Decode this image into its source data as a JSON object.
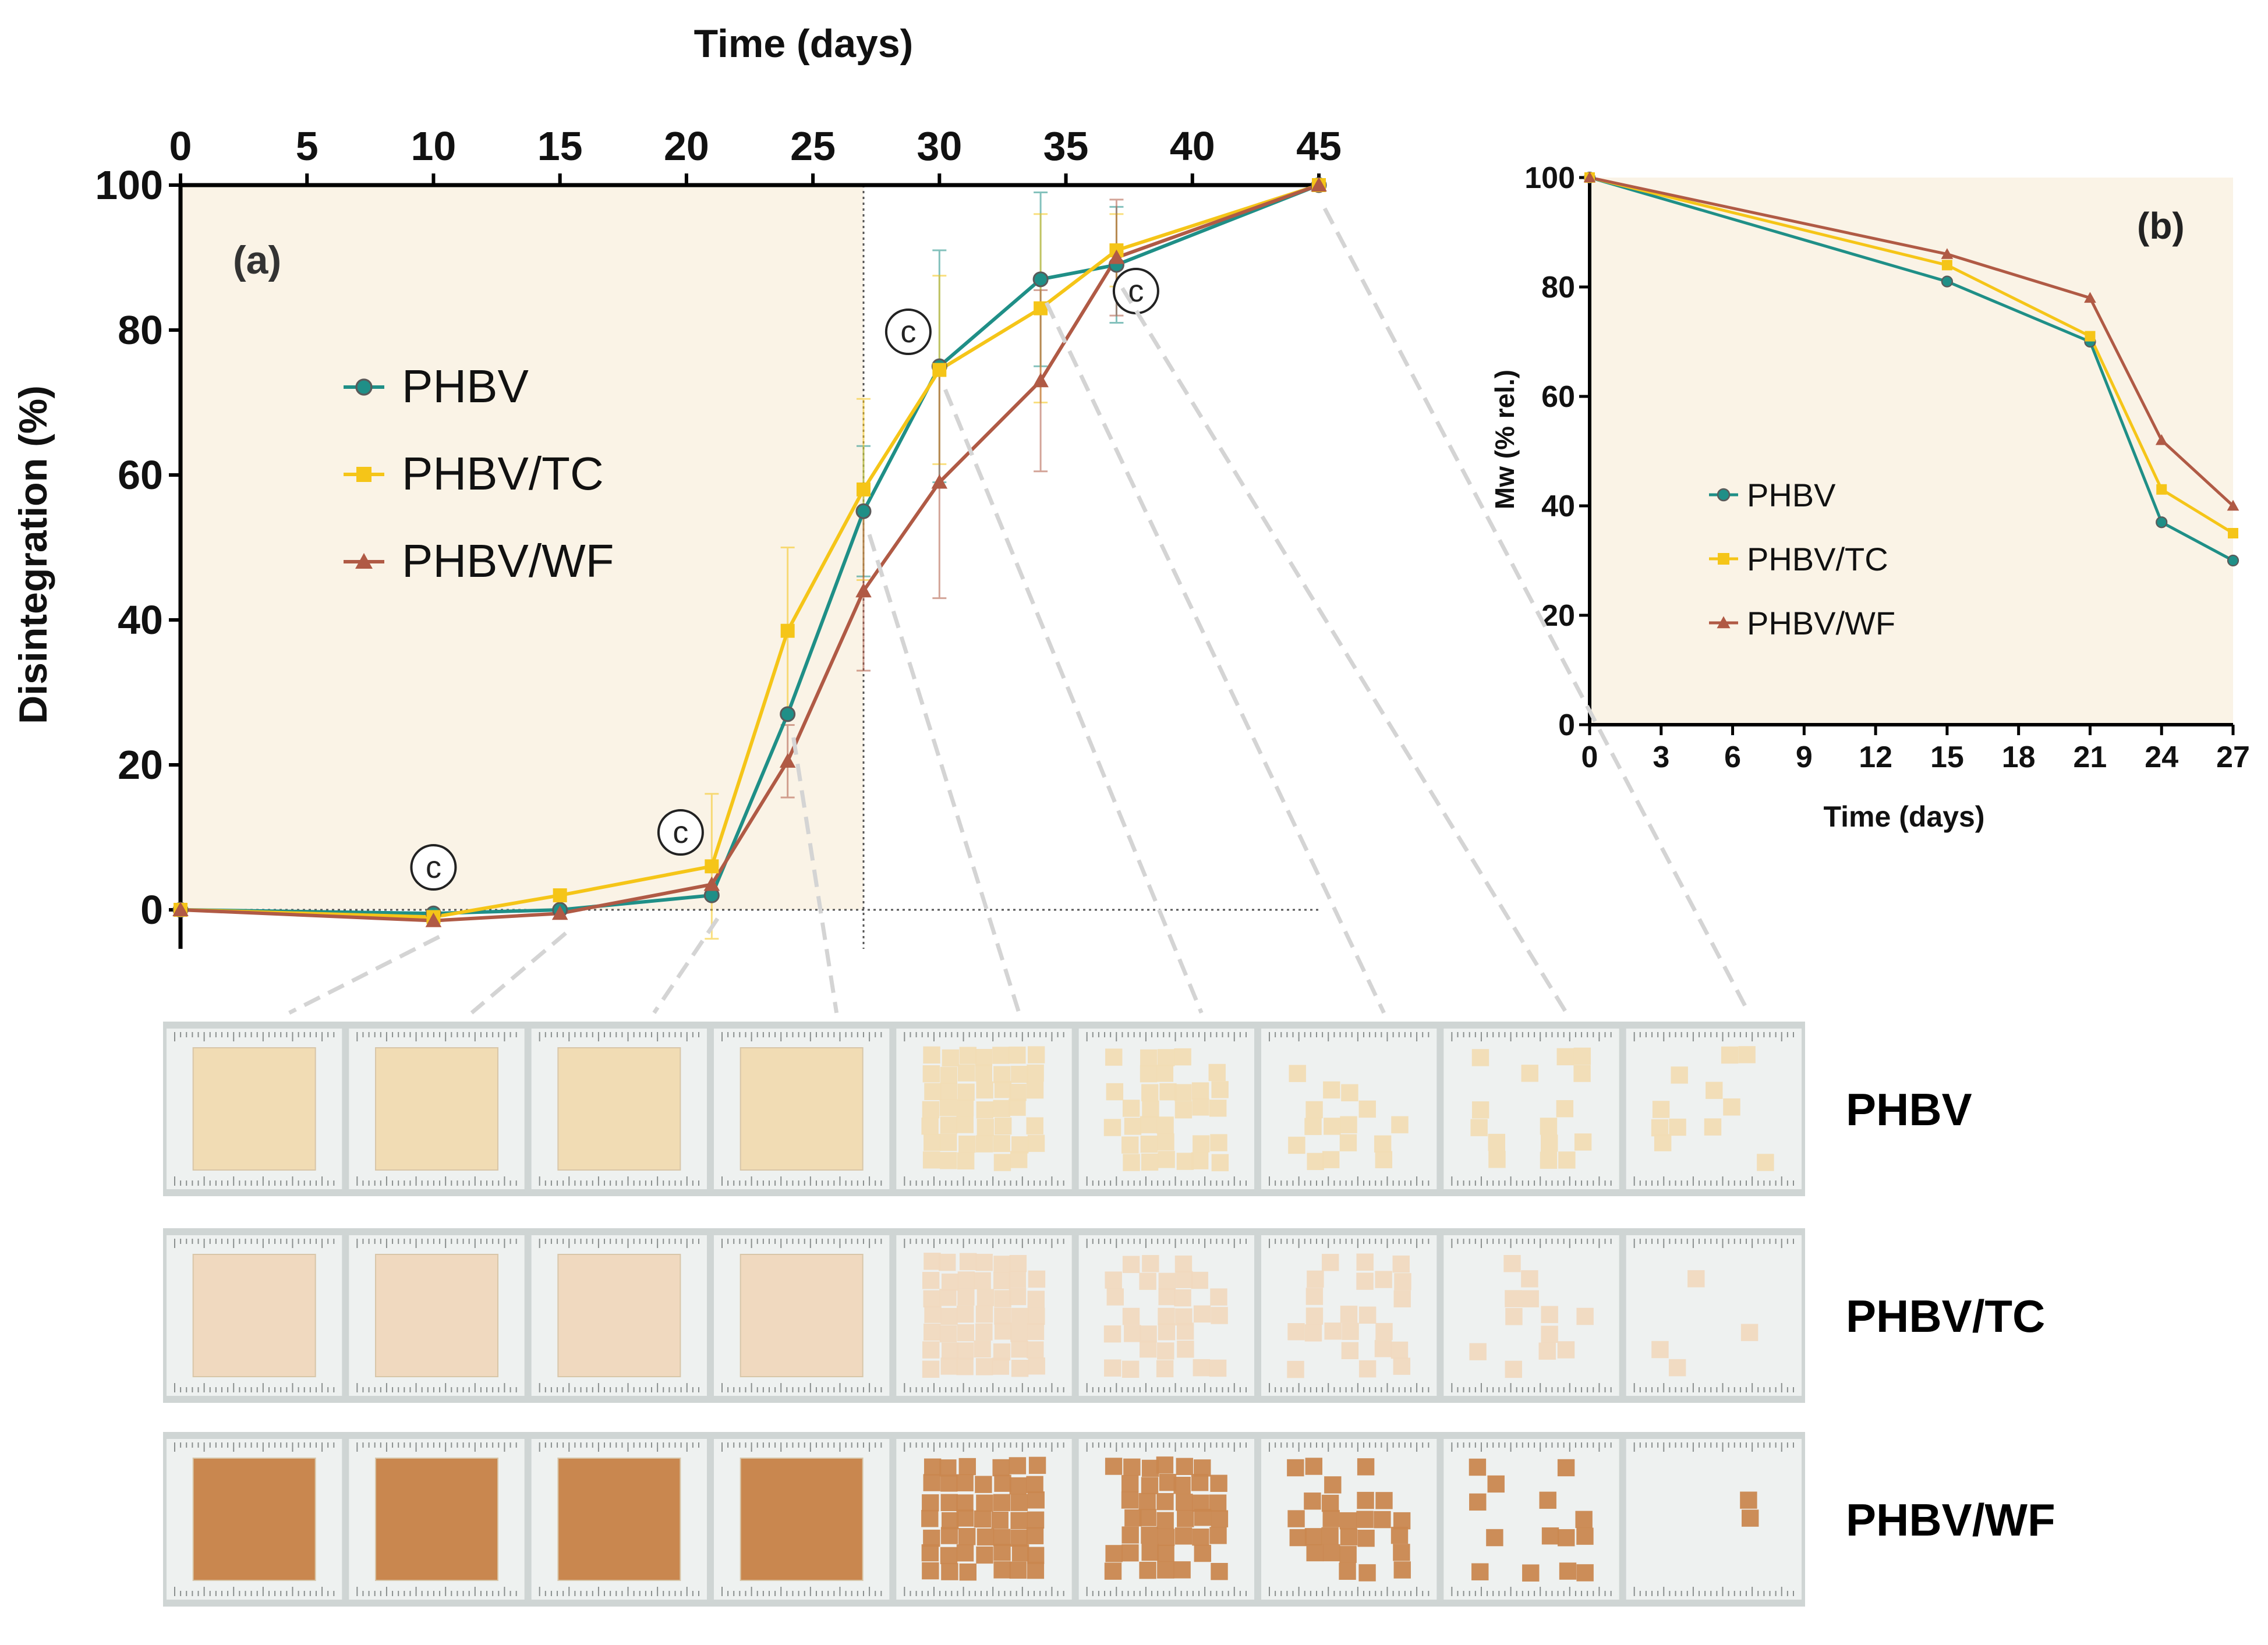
{
  "colors": {
    "phbv": "#1f8f87",
    "phbv_tc": "#f5c518",
    "phbv_wf": "#b05a45",
    "panel_bg": "#faf3e6",
    "strip_bg": "#cfd5d4"
  },
  "chart_data": [
    {
      "id": "a",
      "type": "line",
      "panel_label": "(a)",
      "title": "",
      "xlabel": "Time (days)",
      "ylabel": "Disintegration (%)",
      "xlim": [
        0,
        45
      ],
      "ylim": [
        0,
        100
      ],
      "xticks": [
        0,
        5,
        10,
        15,
        20,
        25,
        30,
        35,
        40,
        45
      ],
      "yticks": [
        0,
        20,
        40,
        60,
        80,
        100
      ],
      "x_axis_position": "top",
      "legend_position": "upper-left",
      "shaded_region_end_day": 27,
      "annotation_symbol": "c",
      "annotation_days": [
        10,
        20,
        29,
        38
      ],
      "series": [
        {
          "name": "PHBV",
          "color_key": "phbv",
          "marker": "circle",
          "x": [
            0,
            10,
            15,
            21,
            24,
            27,
            30,
            34,
            37,
            45
          ],
          "y": [
            0,
            -0.5,
            0,
            2,
            27,
            55,
            75,
            87,
            89,
            100
          ],
          "err": [
            0,
            0,
            0,
            0,
            0,
            9,
            16,
            12,
            8,
            0
          ]
        },
        {
          "name": "PHBV/TC",
          "color_key": "phbv_tc",
          "marker": "square",
          "x": [
            0,
            10,
            15,
            21,
            24,
            27,
            30,
            34,
            37,
            45
          ],
          "y": [
            0,
            -1,
            2,
            6,
            38.5,
            58,
            74.5,
            83,
            91,
            100
          ],
          "err": [
            0,
            0,
            0,
            10,
            11.5,
            12.5,
            13,
            13,
            5,
            0
          ]
        },
        {
          "name": "PHBV/WF",
          "color_key": "phbv_wf",
          "marker": "triangle",
          "x": [
            0,
            10,
            15,
            21,
            24,
            27,
            30,
            34,
            37,
            45
          ],
          "y": [
            0,
            -1.5,
            -0.5,
            3.5,
            20.5,
            44,
            59,
            73,
            90,
            100
          ],
          "err": [
            0,
            0,
            0,
            0,
            5,
            11,
            16,
            12.5,
            8,
            0
          ]
        }
      ]
    },
    {
      "id": "b",
      "type": "line",
      "panel_label": "(b)",
      "title": "",
      "xlabel": "Time (days)",
      "ylabel": "Mw (% rel.)",
      "xlim": [
        0,
        27
      ],
      "ylim": [
        0,
        100
      ],
      "xticks": [
        0,
        3,
        6,
        9,
        12,
        15,
        18,
        21,
        24,
        27
      ],
      "yticks": [
        0,
        20,
        40,
        60,
        80,
        100
      ],
      "legend_position": "center-left",
      "series": [
        {
          "name": "PHBV",
          "color_key": "phbv",
          "marker": "circle",
          "x": [
            0,
            15,
            21,
            24,
            27
          ],
          "y": [
            100,
            81,
            70,
            37,
            30
          ]
        },
        {
          "name": "PHBV/TC",
          "color_key": "phbv_tc",
          "marker": "square",
          "x": [
            0,
            15,
            21,
            24,
            27
          ],
          "y": [
            100,
            84,
            71,
            43,
            35
          ]
        },
        {
          "name": "PHBV/WF",
          "color_key": "phbv_wf",
          "marker": "triangle",
          "x": [
            0,
            15,
            21,
            24,
            27
          ],
          "y": [
            100,
            86,
            78,
            52,
            40
          ]
        }
      ]
    }
  ],
  "photo_rows": [
    {
      "label": "PHBV",
      "tint": "#f1dcb4",
      "damage": [
        0,
        0,
        0,
        0,
        0.05,
        0.35,
        0.55,
        0.65,
        0.75
      ]
    },
    {
      "label": "PHBV/TC",
      "tint": "#f0d9bf",
      "damage": [
        0,
        0,
        0,
        0,
        0.08,
        0.35,
        0.55,
        0.8,
        0.93
      ]
    },
    {
      "label": "PHBV/WF",
      "tint": "#c9874f",
      "damage": [
        0,
        0,
        0,
        0,
        0.03,
        0.2,
        0.4,
        0.65,
        0.9
      ]
    }
  ],
  "photo_days": [
    10,
    15,
    21,
    24,
    27,
    30,
    34,
    37,
    45
  ]
}
